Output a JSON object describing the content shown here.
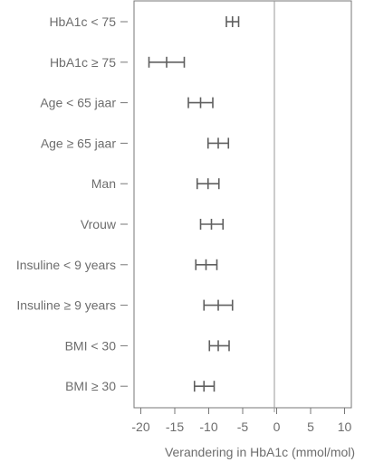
{
  "chart_data": {
    "type": "forest",
    "title": "",
    "xlabel": "Verandering in HbA1c (mmol/mol)",
    "ylabel": "",
    "xlim": [
      -21,
      11
    ],
    "x_ticks": [
      -20,
      -15,
      -10,
      -5,
      0,
      5,
      10
    ],
    "x_tick_labels": [
      "-20",
      "-15",
      "-10",
      "-5",
      "0",
      "5",
      "10"
    ],
    "reference_line": 0,
    "grid": false,
    "colors": {
      "marker": "#5f5f5f",
      "axis": "#777777",
      "reference": "#9a9a9a",
      "text": "#6d6d6d"
    },
    "categories": [
      "HbA1c < 75",
      "HbA1c ≥ 75",
      "Age < 65 jaar",
      "Age ≥ 65 jaar",
      "Man",
      "Vrouw",
      "Insuline < 9 years",
      "Insuline ≥ 9 years",
      "BMI < 30",
      "BMI ≥ 30"
    ],
    "estimates": [
      -6.5,
      -16.2,
      -11.2,
      -8.6,
      -10.1,
      -9.6,
      -10.4,
      -8.6,
      -8.6,
      -10.7
    ],
    "lower": [
      -7.4,
      -18.8,
      -13.0,
      -10.1,
      -11.7,
      -11.2,
      -11.9,
      -10.7,
      -9.9,
      -12.1
    ],
    "upper": [
      -5.6,
      -13.6,
      -9.4,
      -7.1,
      -8.5,
      -7.9,
      -8.8,
      -6.5,
      -7.0,
      -9.2
    ]
  }
}
